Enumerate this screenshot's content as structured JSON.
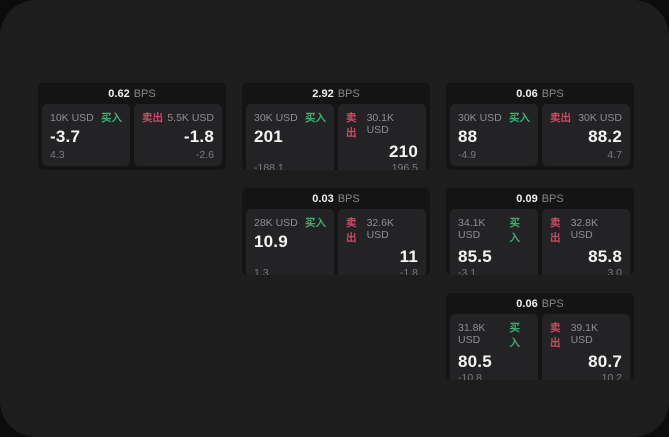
{
  "labels": {
    "bps": "BPS",
    "buy": "买入",
    "sell": "卖出"
  },
  "colors": {
    "buy": "#3eae74",
    "sell": "#cc4a66",
    "page_bg": "#1d1d1e",
    "card_bg": "#141414",
    "panel_bg": "#232325"
  },
  "cards": [
    {
      "row": 1,
      "col": 1,
      "bps": "0.62",
      "buy": {
        "size": "10K USD",
        "value": "-3.7",
        "delta": "4.3"
      },
      "sell": {
        "size": "5.5K USD",
        "value": "-1.8",
        "delta": "-2.6"
      }
    },
    {
      "row": 1,
      "col": 2,
      "bps": "2.92",
      "buy": {
        "size": "30K USD",
        "value": "201",
        "delta": "-188.1"
      },
      "sell": {
        "size": "30.1K USD",
        "value": "210",
        "delta": "196.5"
      }
    },
    {
      "row": 1,
      "col": 3,
      "bps": "0.06",
      "buy": {
        "size": "30K USD",
        "value": "88",
        "delta": "-4.9"
      },
      "sell": {
        "size": "30K USD",
        "value": "88.2",
        "delta": "4.7"
      }
    },
    {
      "row": 2,
      "col": 2,
      "bps": "0.03",
      "buy": {
        "size": "28K USD",
        "value": "10.9",
        "delta": "1.3"
      },
      "sell": {
        "size": "32.6K USD",
        "value": "11",
        "delta": "-1.8"
      }
    },
    {
      "row": 2,
      "col": 3,
      "bps": "0.09",
      "buy": {
        "size": "34.1K USD",
        "value": "85.5",
        "delta": "-3.1"
      },
      "sell": {
        "size": "32.8K USD",
        "value": "85.8",
        "delta": "3.0"
      }
    },
    {
      "row": 3,
      "col": 3,
      "bps": "0.06",
      "buy": {
        "size": "31.8K USD",
        "value": "80.5",
        "delta": "-10.8"
      },
      "sell": {
        "size": "39.1K USD",
        "value": "80.7",
        "delta": "10.2"
      }
    }
  ]
}
